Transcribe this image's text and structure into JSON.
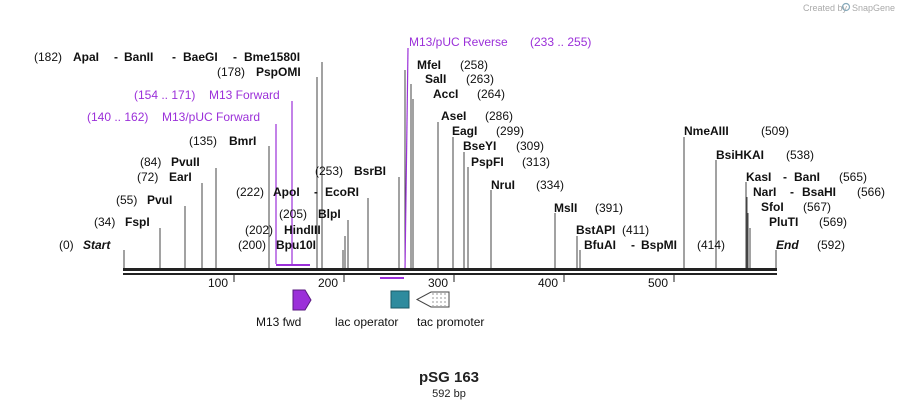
{
  "credit": {
    "text": "Created by",
    "brand": "SnapGene"
  },
  "title": "pSG 163",
  "length_label": "592 bp",
  "sequence_length": 592,
  "ruler": {
    "ticks": [
      {
        "pos": 100,
        "label": "100"
      },
      {
        "pos": 200,
        "label": "200"
      },
      {
        "pos": 300,
        "label": "300"
      },
      {
        "pos": 400,
        "label": "400"
      },
      {
        "pos": 500,
        "label": "500"
      }
    ]
  },
  "ends": [
    {
      "pos": "(0)",
      "name": "Start"
    },
    {
      "pos": "(592)",
      "name": "End"
    }
  ],
  "sites": [
    {
      "num": "(182)",
      "names": [
        "ApaI",
        "BanII",
        "BaeGI",
        "Bme1580I"
      ],
      "x": 322
    },
    {
      "num": "(178)",
      "names": [
        "PspOMI"
      ],
      "x": 317
    },
    {
      "num": "(135)",
      "names": [
        "BmrI"
      ],
      "x": 269
    },
    {
      "num": "(84)",
      "names": [
        "PvuII"
      ],
      "x": 216
    },
    {
      "num": "(72)",
      "names": [
        "EarI"
      ],
      "x": 202
    },
    {
      "num": "(55)",
      "names": [
        "PvuI"
      ],
      "x": 185
    },
    {
      "num": "(34)",
      "names": [
        "FspI"
      ],
      "x": 160
    },
    {
      "num": "(222)",
      "names": [
        "ApoI",
        "EcoRI"
      ],
      "x": 368
    },
    {
      "num": "(205)",
      "names": [
        "BlpI"
      ],
      "x": 348
    },
    {
      "num": "(202)",
      "names": [
        "HindIII"
      ],
      "x": 345
    },
    {
      "num": "(200)",
      "names": [
        "Bpu10I"
      ],
      "x": 343
    },
    {
      "num": "(253)",
      "names": [
        "BsrBI"
      ],
      "x": 399
    },
    {
      "num": "(258)",
      "names": [
        "MfeI"
      ],
      "x": 405
    },
    {
      "num": "(263)",
      "names": [
        "SalI"
      ],
      "x": 411
    },
    {
      "num": "(264)",
      "names": [
        "AccI"
      ],
      "x": 413
    },
    {
      "num": "(286)",
      "names": [
        "AseI"
      ],
      "x": 438
    },
    {
      "num": "(299)",
      "names": [
        "EagI"
      ],
      "x": 453
    },
    {
      "num": "(309)",
      "names": [
        "BseYI"
      ],
      "x": 464
    },
    {
      "num": "(313)",
      "names": [
        "PspFI"
      ],
      "x": 468
    },
    {
      "num": "(334)",
      "names": [
        "NruI"
      ],
      "x": 491
    },
    {
      "num": "(391)",
      "names": [
        "MslI"
      ],
      "x": 555
    },
    {
      "num": "(411)",
      "names": [
        "BstAPI"
      ],
      "x": 577
    },
    {
      "num": "(414)",
      "names": [
        "BfuAI",
        "BspMI"
      ],
      "x": 580
    },
    {
      "num": "(509)",
      "names": [
        "NmeAIII"
      ],
      "x": 684
    },
    {
      "num": "(538)",
      "names": [
        "BsiHKAI"
      ],
      "x": 716
    },
    {
      "num": "(565)",
      "names": [
        "KasI",
        "BanI"
      ],
      "x": 746
    },
    {
      "num": "(566)",
      "names": [
        "NarI",
        "BsaHI"
      ],
      "x": 747
    },
    {
      "num": "(567)",
      "names": [
        "SfoI"
      ],
      "x": 748
    },
    {
      "num": "(569)",
      "names": [
        "PluTI"
      ],
      "x": 750
    }
  ],
  "primers": [
    {
      "name": "M13/pUC Reverse",
      "range": "(233 .. 255)"
    },
    {
      "name": "M13 Forward",
      "range": "(154 .. 171)"
    },
    {
      "name": "M13/pUC Forward",
      "range": "(140 .. 162)"
    }
  ],
  "features": [
    {
      "name": "M13 fwd",
      "color": "#9b30d9"
    },
    {
      "name": "lac operator",
      "color": "#2e8b9e"
    },
    {
      "name": "tac promoter",
      "color": "#ffffff"
    }
  ],
  "colors": {
    "primer": "#9b30d9",
    "operator": "#2e8b9e",
    "line": "#222222"
  }
}
